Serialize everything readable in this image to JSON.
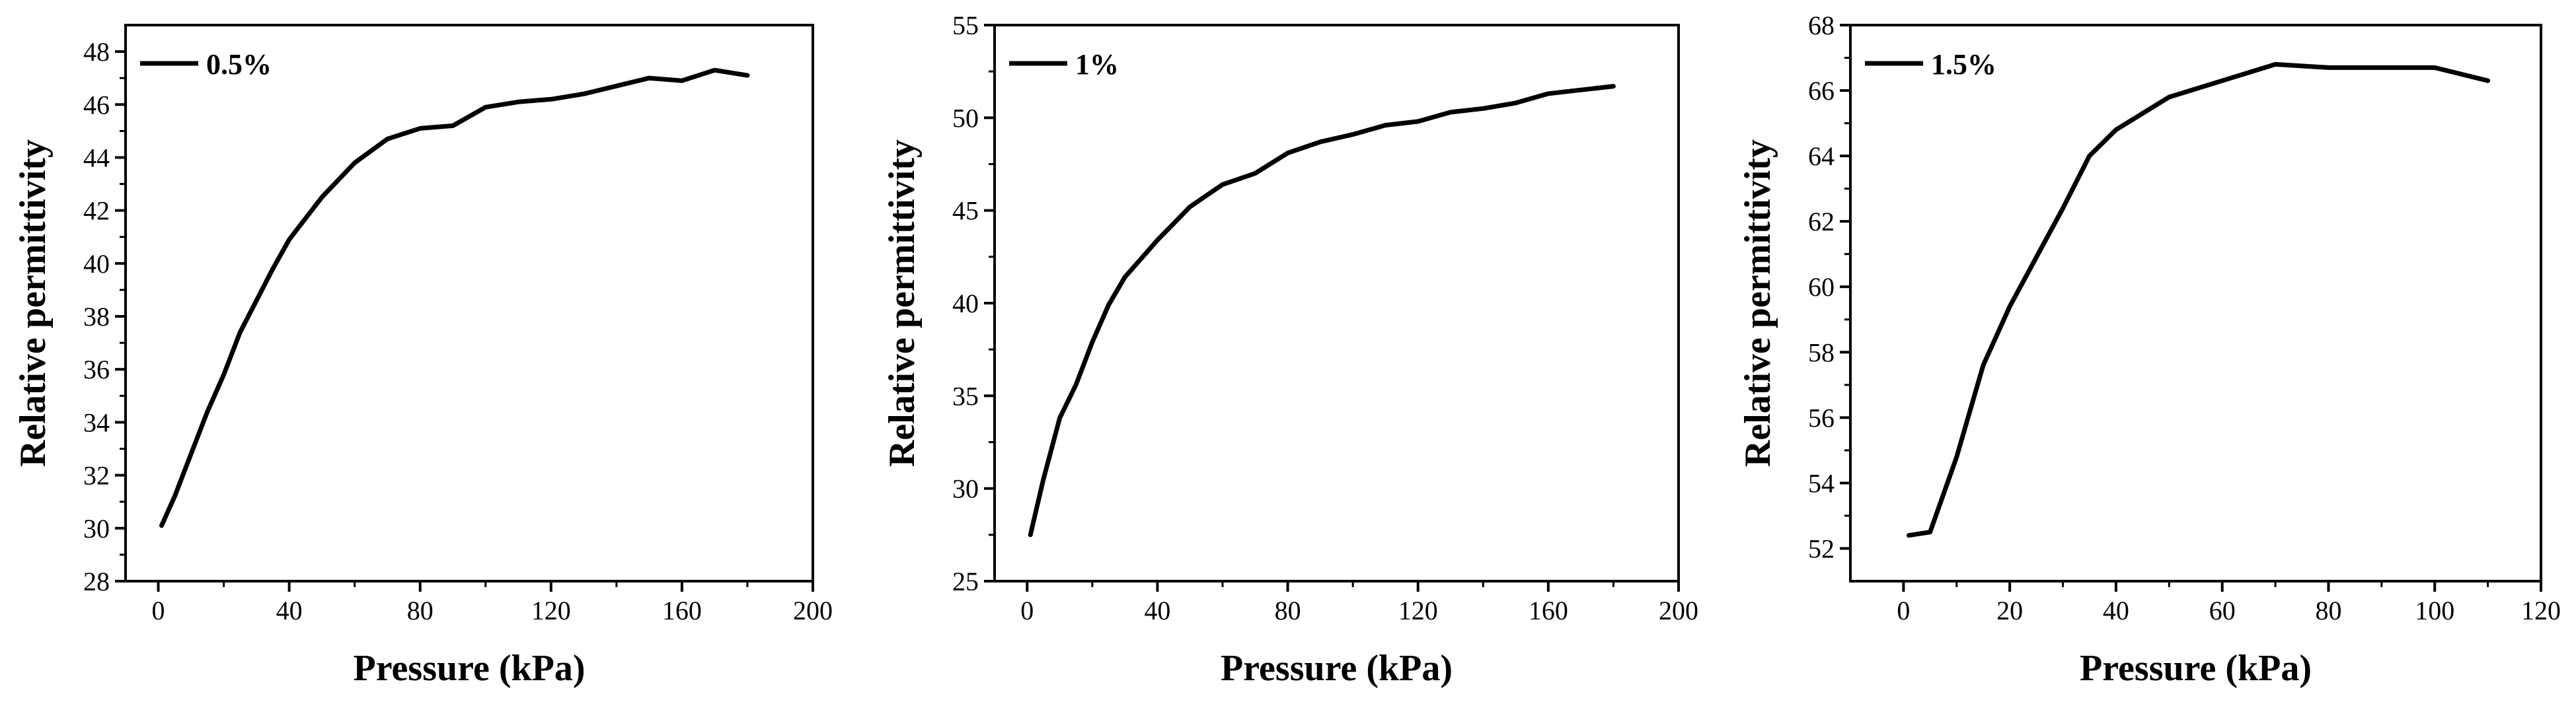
{
  "figure": {
    "background": "#ffffff",
    "line_color": "#000000"
  },
  "chart_data": [
    {
      "type": "line",
      "xlabel": "Pressure (kPa)",
      "ylabel": "Relative permittivity",
      "xlim": [
        -10,
        200
      ],
      "ylim": [
        28,
        49
      ],
      "xticks": [
        0,
        40,
        80,
        120,
        160,
        200
      ],
      "yticks": [
        28,
        30,
        32,
        34,
        36,
        38,
        40,
        42,
        44,
        46,
        48
      ],
      "grid": false,
      "legend_position": "top-left",
      "series": [
        {
          "name": "0.5%",
          "x": [
            1,
            5,
            10,
            15,
            20,
            25,
            30,
            35,
            40,
            50,
            60,
            70,
            80,
            90,
            100,
            110,
            120,
            130,
            140,
            150,
            160,
            170,
            180
          ],
          "y": [
            30.1,
            31.2,
            32.8,
            34.4,
            35.8,
            37.4,
            38.6,
            39.8,
            40.9,
            42.5,
            43.8,
            44.7,
            45.1,
            45.2,
            45.9,
            46.1,
            46.2,
            46.4,
            46.7,
            47.0,
            46.9,
            47.3,
            47.1
          ]
        }
      ]
    },
    {
      "type": "line",
      "xlabel": "Pressure (kPa)",
      "ylabel": "Relative permittivity",
      "xlim": [
        -10,
        200
      ],
      "ylim": [
        25,
        55
      ],
      "xticks": [
        0,
        40,
        80,
        120,
        160,
        200
      ],
      "yticks": [
        25,
        30,
        35,
        40,
        45,
        50,
        55
      ],
      "grid": false,
      "legend_position": "top-left",
      "series": [
        {
          "name": "1%",
          "x": [
            1,
            5,
            10,
            15,
            20,
            25,
            30,
            40,
            50,
            60,
            70,
            80,
            90,
            100,
            110,
            120,
            130,
            140,
            150,
            160,
            170,
            180
          ],
          "y": [
            27.5,
            30.5,
            33.8,
            35.6,
            37.9,
            39.9,
            41.4,
            43.4,
            45.2,
            46.4,
            47.0,
            48.1,
            48.7,
            49.1,
            49.6,
            49.8,
            50.3,
            50.5,
            50.8,
            51.3,
            51.5,
            51.7
          ]
        }
      ]
    },
    {
      "type": "line",
      "xlabel": "Pressure (kPa)",
      "ylabel": "Relative permittivity",
      "xlim": [
        -10,
        120
      ],
      "ylim": [
        51,
        68
      ],
      "xticks": [
        0,
        20,
        40,
        60,
        80,
        100,
        120
      ],
      "yticks": [
        52,
        54,
        56,
        58,
        60,
        62,
        64,
        66,
        68
      ],
      "grid": false,
      "legend_position": "top-left",
      "series": [
        {
          "name": "1.5%",
          "x": [
            1,
            5,
            10,
            15,
            20,
            25,
            30,
            35,
            40,
            50,
            60,
            70,
            80,
            90,
            100,
            110
          ],
          "y": [
            52.4,
            52.5,
            54.8,
            57.6,
            59.4,
            60.9,
            62.4,
            64.0,
            64.8,
            65.8,
            66.3,
            66.8,
            66.7,
            66.7,
            66.7,
            66.3
          ]
        }
      ]
    }
  ]
}
